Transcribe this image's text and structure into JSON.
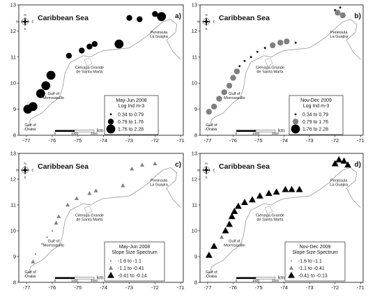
{
  "colors": {
    "background": "#ffffff",
    "frame": "#000000",
    "coastline": "#8a8a8a",
    "symbol_black": "#000000",
    "symbol_grey": "#808080",
    "symbol_light": "#a8a8a8",
    "text": "#111111"
  },
  "labels": {
    "sea": "Caribbean Sea",
    "peninsula_line1": "Peninsula",
    "peninsula_line2": "La Guajira",
    "cienaga_line1": "Ciénaga Grande",
    "cienaga_line2": "de Santa Marta",
    "gulf_morr_line1": "Gulf of",
    "gulf_morr_line2": "Morrosquillo",
    "gulf_uraba_line1": "Gulf of",
    "gulf_uraba_line2": "Urabá",
    "scale_left": "0",
    "scale_mid": "1000",
    "scale_right": "2000",
    "scale_unit": "km",
    "compass_n": "N",
    "compass_e": "E",
    "compass_s": "S",
    "compass_w": "W"
  },
  "axis": {
    "lon_ticks": [
      "-77",
      "-76",
      "-75",
      "-74",
      "-73",
      "-72",
      "-71"
    ],
    "lat_ticks": [
      "8",
      "9",
      "10",
      "11",
      "12",
      "13"
    ],
    "lon_range": [
      -77.3,
      -70.9
    ],
    "lat_range": [
      8,
      13
    ]
  },
  "panels": [
    {
      "tag": "a)",
      "legend_title1": "May-Jun 2008",
      "legend_title2": "Log Ind m-3",
      "legend_items": [
        {
          "label": "0.34  to  0.79",
          "symbol": "circle",
          "size": "small",
          "color": "#000000"
        },
        {
          "label": "0.79  to  1.76",
          "symbol": "circle",
          "size": "medium",
          "color": "#000000"
        },
        {
          "label": "1.76  to  2.28",
          "symbol": "circle",
          "size": "large",
          "color": "#000000"
        }
      ]
    },
    {
      "tag": "b)",
      "legend_title1": "Nov-Dec 2009",
      "legend_title2": "Log Ind m-3",
      "legend_items": [
        {
          "label": "0.34  to  0.79",
          "symbol": "circle",
          "size": "small",
          "color": "#000000"
        },
        {
          "label": "0.79  to  1.76",
          "symbol": "circle",
          "size": "medium",
          "color": "#808080"
        },
        {
          "label": "1.76  to  2.28",
          "symbol": "circle",
          "size": "large",
          "color": "#000000"
        }
      ]
    },
    {
      "tag": "c)",
      "legend_title1": "May-Jun 2008",
      "legend_title2": "Slope Size Spectrum",
      "legend_items": [
        {
          "label": "-1.6  to  -1.1",
          "symbol": "triangle",
          "size": "small",
          "color": "#808080"
        },
        {
          "label": "-1.1  to  -0.41",
          "symbol": "triangle",
          "size": "medium",
          "color": "#808080"
        },
        {
          "label": "-0.41  to  -0.14",
          "symbol": "triangle",
          "size": "large",
          "color": "#000000"
        }
      ]
    },
    {
      "tag": "d)",
      "legend_title1": "Nov-Dec 2009",
      "legend_title2": "Slope Size Spectrum",
      "legend_items": [
        {
          "label": "-1.6  to  -1.1",
          "symbol": "triangle",
          "size": "small",
          "color": "#a8a8a8"
        },
        {
          "label": "-1.1  to  -0.41",
          "symbol": "triangle",
          "size": "medium",
          "color": "#808080"
        },
        {
          "label": "-0.41  to  -0.13",
          "symbol": "triangle",
          "size": "large",
          "color": "#000000"
        }
      ]
    }
  ],
  "coastline": [
    {
      "lon": -77.1,
      "lat": 8.2
    },
    {
      "lon": -76.9,
      "lat": 8.4
    },
    {
      "lon": -76.85,
      "lat": 8.6
    },
    {
      "lon": -76.7,
      "lat": 8.7
    },
    {
      "lon": -76.4,
      "lat": 8.85
    },
    {
      "lon": -76.2,
      "lat": 9.05
    },
    {
      "lon": -76.0,
      "lat": 9.25
    },
    {
      "lon": -75.85,
      "lat": 9.35
    },
    {
      "lon": -75.7,
      "lat": 9.5
    },
    {
      "lon": -75.6,
      "lat": 9.8
    },
    {
      "lon": -75.55,
      "lat": 10.1
    },
    {
      "lon": -75.5,
      "lat": 10.4
    },
    {
      "lon": -75.3,
      "lat": 10.8
    },
    {
      "lon": -75.0,
      "lat": 10.95
    },
    {
      "lon": -74.8,
      "lat": 11.05
    },
    {
      "lon": -74.5,
      "lat": 11.0
    },
    {
      "lon": -74.25,
      "lat": 11.15
    },
    {
      "lon": -74.0,
      "lat": 11.25
    },
    {
      "lon": -73.5,
      "lat": 11.3
    },
    {
      "lon": -73.0,
      "lat": 11.35
    },
    {
      "lon": -72.6,
      "lat": 11.6
    },
    {
      "lon": -72.25,
      "lat": 11.85
    },
    {
      "lon": -72.0,
      "lat": 12.1
    },
    {
      "lon": -71.7,
      "lat": 12.35
    },
    {
      "lon": -71.4,
      "lat": 12.45
    },
    {
      "lon": -71.15,
      "lat": 12.25
    },
    {
      "lon": -71.2,
      "lat": 11.95
    },
    {
      "lon": -71.55,
      "lat": 11.65
    },
    {
      "lon": -71.3,
      "lat": 11.2
    },
    {
      "lon": -71.0,
      "lat": 10.9
    }
  ],
  "observations": [
    {
      "panel": 0,
      "points": [
        {
          "lon": -76.95,
          "lat": 9.0,
          "size": "large"
        },
        {
          "lon": -76.75,
          "lat": 9.1,
          "size": "large"
        },
        {
          "lon": -76.45,
          "lat": 9.6,
          "size": "large"
        },
        {
          "lon": -76.25,
          "lat": 9.9,
          "size": "large"
        },
        {
          "lon": -76.05,
          "lat": 10.3,
          "size": "large"
        },
        {
          "lon": -75.35,
          "lat": 11.05,
          "size": "medium"
        },
        {
          "lon": -74.85,
          "lat": 11.25,
          "size": "medium"
        },
        {
          "lon": -74.55,
          "lat": 11.4,
          "size": "medium"
        },
        {
          "lon": -74.35,
          "lat": 11.5,
          "size": "medium"
        },
        {
          "lon": -73.4,
          "lat": 11.5,
          "size": "large"
        },
        {
          "lon": -73.0,
          "lat": 12.5,
          "size": "medium"
        },
        {
          "lon": -72.6,
          "lat": 12.45,
          "size": "medium"
        },
        {
          "lon": -72.0,
          "lat": 12.65,
          "size": "medium"
        },
        {
          "lon": -71.75,
          "lat": 12.55,
          "size": "large"
        }
      ]
    },
    {
      "panel": 1,
      "points": [
        {
          "lon": -76.95,
          "lat": 8.9,
          "size": "medium"
        },
        {
          "lon": -76.75,
          "lat": 9.1,
          "size": "medium"
        },
        {
          "lon": -76.55,
          "lat": 9.4,
          "size": "medium"
        },
        {
          "lon": -76.35,
          "lat": 9.65,
          "size": "medium"
        },
        {
          "lon": -76.15,
          "lat": 9.9,
          "size": "medium"
        },
        {
          "lon": -76.0,
          "lat": 10.2,
          "size": "medium"
        },
        {
          "lon": -75.85,
          "lat": 10.45,
          "size": "medium"
        },
        {
          "lon": -75.75,
          "lat": 10.65,
          "size": "small"
        },
        {
          "lon": -75.55,
          "lat": 10.85,
          "size": "small"
        },
        {
          "lon": -75.3,
          "lat": 11.0,
          "size": "small"
        },
        {
          "lon": -75.05,
          "lat": 11.2,
          "size": "small"
        },
        {
          "lon": -74.75,
          "lat": 11.35,
          "size": "small"
        },
        {
          "lon": -74.45,
          "lat": 11.45,
          "size": "medium"
        },
        {
          "lon": -74.15,
          "lat": 11.55,
          "size": "medium"
        },
        {
          "lon": -73.9,
          "lat": 11.6,
          "size": "medium"
        },
        {
          "lon": -73.55,
          "lat": 11.55,
          "size": "small"
        },
        {
          "lon": -72.0,
          "lat": 12.8,
          "size": "small"
        },
        {
          "lon": -71.8,
          "lat": 12.9,
          "size": "small"
        },
        {
          "lon": -71.9,
          "lat": 12.7,
          "size": "medium"
        },
        {
          "lon": -71.7,
          "lat": 12.6,
          "size": "medium"
        }
      ]
    },
    {
      "panel": 2,
      "points": [
        {
          "lon": -76.75,
          "lat": 8.8,
          "size": "medium"
        },
        {
          "lon": -76.65,
          "lat": 9.1,
          "size": "small"
        },
        {
          "lon": -76.4,
          "lat": 9.5,
          "size": "small"
        },
        {
          "lon": -76.2,
          "lat": 9.75,
          "size": "small"
        },
        {
          "lon": -76.0,
          "lat": 10.0,
          "size": "small"
        },
        {
          "lon": -75.85,
          "lat": 10.3,
          "size": "medium"
        },
        {
          "lon": -75.75,
          "lat": 10.55,
          "size": "medium"
        },
        {
          "lon": -75.4,
          "lat": 11.0,
          "size": "medium"
        },
        {
          "lon": -75.05,
          "lat": 11.25,
          "size": "medium"
        },
        {
          "lon": -74.55,
          "lat": 11.45,
          "size": "medium"
        },
        {
          "lon": -74.3,
          "lat": 11.55,
          "size": "medium"
        },
        {
          "lon": -73.25,
          "lat": 11.75,
          "size": "medium"
        },
        {
          "lon": -72.9,
          "lat": 12.4,
          "size": "medium"
        },
        {
          "lon": -72.5,
          "lat": 12.55,
          "size": "medium"
        },
        {
          "lon": -72.0,
          "lat": 12.6,
          "size": "medium"
        }
      ]
    },
    {
      "panel": 3,
      "points": [
        {
          "lon": -76.95,
          "lat": 9.05,
          "size": "large"
        },
        {
          "lon": -76.75,
          "lat": 9.4,
          "size": "large"
        },
        {
          "lon": -76.45,
          "lat": 9.75,
          "size": "medium"
        },
        {
          "lon": -76.3,
          "lat": 10.0,
          "size": "large"
        },
        {
          "lon": -76.15,
          "lat": 10.25,
          "size": "large"
        },
        {
          "lon": -76.05,
          "lat": 10.55,
          "size": "large"
        },
        {
          "lon": -75.95,
          "lat": 10.75,
          "size": "large"
        },
        {
          "lon": -75.8,
          "lat": 10.95,
          "size": "large"
        },
        {
          "lon": -75.55,
          "lat": 11.1,
          "size": "large"
        },
        {
          "lon": -75.25,
          "lat": 11.2,
          "size": "large"
        },
        {
          "lon": -74.95,
          "lat": 11.35,
          "size": "large"
        },
        {
          "lon": -74.6,
          "lat": 11.45,
          "size": "large"
        },
        {
          "lon": -74.3,
          "lat": 11.5,
          "size": "large"
        },
        {
          "lon": -73.95,
          "lat": 11.6,
          "size": "large"
        },
        {
          "lon": -73.7,
          "lat": 11.6,
          "size": "large"
        },
        {
          "lon": -73.4,
          "lat": 11.6,
          "size": "large"
        },
        {
          "lon": -72.0,
          "lat": 12.6,
          "size": "large"
        },
        {
          "lon": -71.85,
          "lat": 12.75,
          "size": "large"
        },
        {
          "lon": -71.65,
          "lat": 12.7,
          "size": "large"
        },
        {
          "lon": -71.5,
          "lat": 12.55,
          "size": "large"
        }
      ]
    }
  ]
}
